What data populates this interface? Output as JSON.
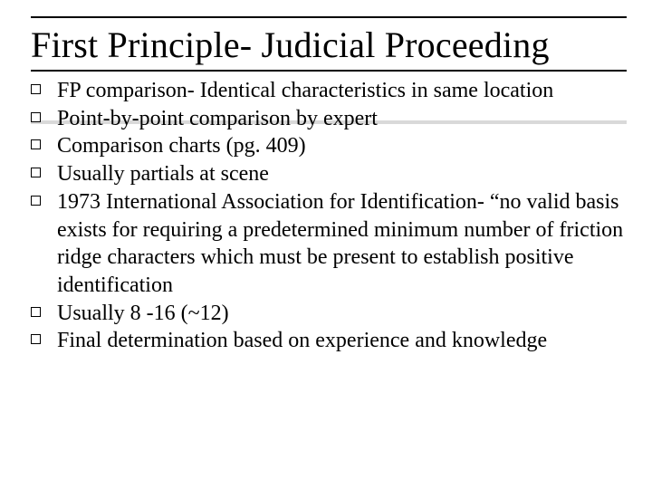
{
  "slide": {
    "title": "First Principle- Judicial Proceeding",
    "title_fontsize": 40,
    "body_fontsize": 24,
    "text_color": "#000000",
    "background_color": "#ffffff",
    "rule_color": "#000000",
    "bullet_style": "hollow-square",
    "bullets": [
      {
        "text": "FP comparison- Identical characteristics in same location"
      },
      {
        "text": "Point-by-point comparison by expert"
      },
      {
        "text": "Comparison charts (pg. 409)"
      },
      {
        "text": "Usually partials at scene"
      },
      {
        "text": "1973 International Association for Identification- “no valid basis exists for requiring a predetermined minimum number of friction ridge characters which must be present to establish positive identification"
      },
      {
        "text": "Usually 8 -16 (~12)"
      },
      {
        "text": "Final determination based on experience and knowledge"
      }
    ]
  }
}
